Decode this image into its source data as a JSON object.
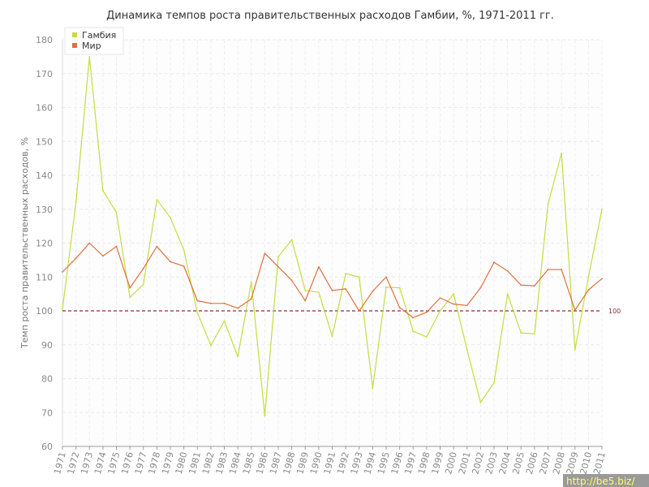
{
  "chart_data": {
    "type": "line",
    "title": "Динамика темпов роста правительственных расходов Гамбии, %, 1971-2011 гг.",
    "ylabel": "Темп роста правительственных расходов, %",
    "xlabel": "",
    "ylim": [
      60,
      180
    ],
    "yticks": [
      60,
      70,
      80,
      90,
      100,
      110,
      120,
      130,
      140,
      150,
      160,
      170,
      180
    ],
    "grid": true,
    "legend_position": "top-left",
    "x": [
      1971,
      1972,
      1973,
      1974,
      1975,
      1976,
      1977,
      1978,
      1979,
      1980,
      1981,
      1982,
      1983,
      1984,
      1985,
      1986,
      1987,
      1988,
      1989,
      1990,
      1991,
      1992,
      1993,
      1994,
      1995,
      1996,
      1997,
      1998,
      1999,
      2000,
      2001,
      2002,
      2003,
      2004,
      2005,
      2006,
      2007,
      2008,
      2009,
      2010,
      2011
    ],
    "series": [
      {
        "name": "Гамбия",
        "color": "#c5dd3f",
        "values": [
          100.5,
          132,
          175,
          135.5,
          129,
          104,
          107.8,
          132.8,
          127.5,
          118,
          99.5,
          89.8,
          97,
          86.5,
          108.5,
          69,
          116,
          121,
          106,
          105.5,
          92.5,
          111,
          110,
          77.2,
          107,
          106.8,
          94,
          92.3,
          100,
          105,
          88.5,
          73,
          78.8,
          105,
          93.5,
          93.2,
          131.5,
          146.5,
          88.5,
          110,
          130
        ]
      },
      {
        "name": "Мир",
        "color": "#e06f3c",
        "values": [
          111.5,
          115.5,
          120,
          116.2,
          119,
          106.8,
          112.5,
          119,
          114.5,
          113.2,
          103,
          102.2,
          102.2,
          100.8,
          103.5,
          117,
          113,
          109,
          103,
          113,
          106,
          106.5,
          100,
          105.8,
          110,
          101,
          98,
          99.6,
          103.8,
          102,
          101.6,
          106.8,
          114.3,
          111.8,
          107.6,
          107.4,
          112.2,
          112.2,
          100.2,
          106.2,
          109.5
        ]
      }
    ],
    "reference_line": {
      "value": 100,
      "label": "100",
      "color": "#8b2c3a"
    }
  },
  "watermark": "http://be5.biz/"
}
